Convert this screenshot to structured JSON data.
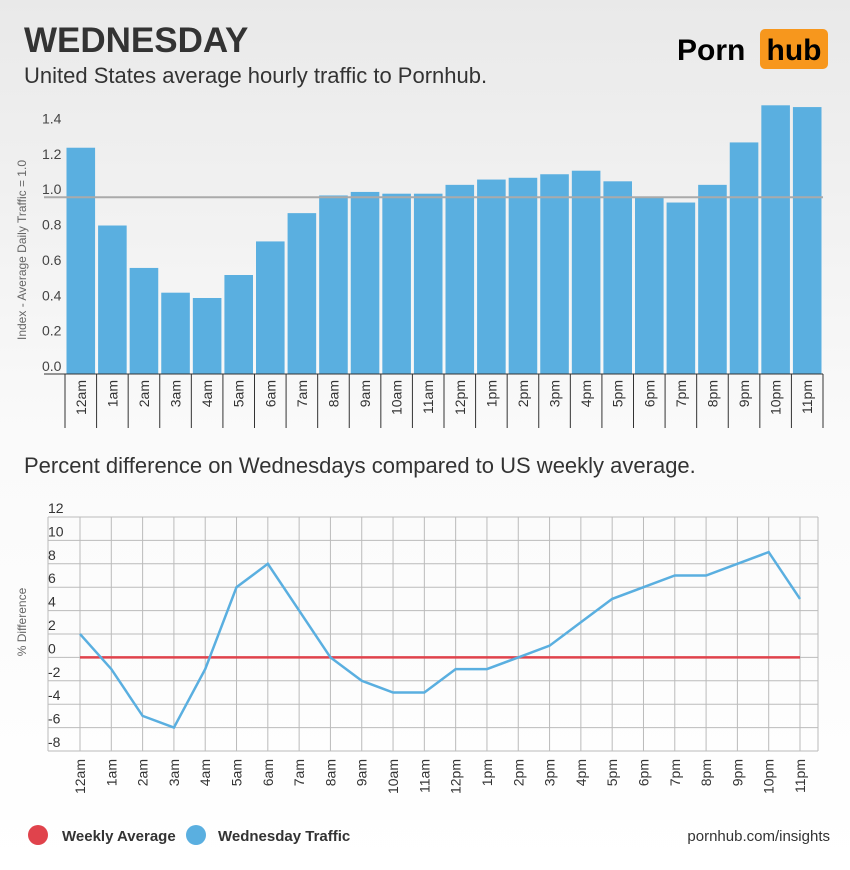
{
  "logo": [
    "Porn",
    "hub"
  ],
  "source": "pornhub.com/insights",
  "chart_data": [
    {
      "type": "bar",
      "title": "WEDNESDAY",
      "subtitle": "United States average hourly traffic to Pornhub.",
      "y_label": "Index - Average Daily Traffic = 1.0",
      "categories": [
        "12am",
        "1am",
        "2am",
        "3am",
        "4am",
        "5am",
        "6am",
        "7am",
        "8am",
        "9am",
        "10am",
        "11am",
        "12pm",
        "1pm",
        "2pm",
        "3pm",
        "4pm",
        "5pm",
        "6pm",
        "7pm",
        "8pm",
        "9pm",
        "10pm",
        "11pm"
      ],
      "values": [
        1.28,
        0.84,
        0.6,
        0.46,
        0.43,
        0.56,
        0.75,
        0.91,
        1.01,
        1.03,
        1.02,
        1.02,
        1.07,
        1.1,
        1.11,
        1.13,
        1.15,
        1.09,
        1.0,
        0.97,
        1.07,
        1.31,
        1.52,
        1.51
      ],
      "color": "#5aafe0",
      "reference_line": 1.0,
      "ylim": [
        0,
        1.55
      ],
      "yticks": [
        {
          "value": 0,
          "label": "0.0"
        },
        0.2,
        0.4,
        0.6,
        0.8,
        {
          "value": 1,
          "label": "1.0"
        },
        1.2,
        1.4
      ]
    },
    {
      "type": "line",
      "title": "Percent difference on Wednesdays compared to US weekly average.",
      "y_label": "% Difference",
      "categories": [
        "12am",
        "1am",
        "2am",
        "3am",
        "4am",
        "5am",
        "6am",
        "7am",
        "8am",
        "9am",
        "10am",
        "11am",
        "12pm",
        "1pm",
        "2pm",
        "3pm",
        "4pm",
        "5pm",
        "6pm",
        "7pm",
        "8pm",
        "9pm",
        "10pm",
        "11pm"
      ],
      "series": [
        {
          "name": "Weekly Average",
          "color": "#e0434c",
          "values": [
            0,
            0,
            0,
            0,
            0,
            0,
            0,
            0,
            0,
            0,
            0,
            0,
            0,
            0,
            0,
            0,
            0,
            0,
            0,
            0,
            0,
            0,
            0,
            0
          ]
        },
        {
          "name": "Wednesday Traffic",
          "color": "#5aafe0",
          "values": [
            2,
            -1,
            -5,
            -6,
            -1,
            6,
            8,
            4,
            0,
            -2,
            -3,
            -3,
            -1,
            -1,
            0,
            1,
            3,
            5,
            6,
            7,
            7,
            8,
            9,
            5
          ]
        }
      ],
      "ylim": [
        -8,
        12
      ],
      "yticks": [
        12,
        10,
        8,
        6,
        4,
        2,
        0,
        -2,
        -4,
        -6,
        -8
      ],
      "grid": true
    }
  ]
}
